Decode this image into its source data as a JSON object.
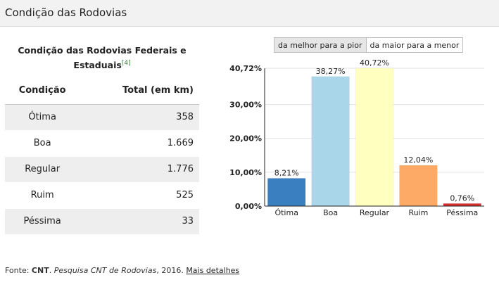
{
  "header": {
    "title": "Condição das Rodovias"
  },
  "table": {
    "caption": "Condição das Rodovias Federais e Estaduais",
    "ref": "[4]",
    "columns": [
      "Condição",
      "Total (em km)"
    ],
    "rows": [
      {
        "condicao": "Ótima",
        "total": "358"
      },
      {
        "condicao": "Boa",
        "total": "1.669"
      },
      {
        "condicao": "Regular",
        "total": "1.776"
      },
      {
        "condicao": "Ruim",
        "total": "525"
      },
      {
        "condicao": "Péssima",
        "total": "33"
      }
    ]
  },
  "sort_buttons": {
    "best_to_worst": "da melhor para a pior",
    "largest_to_smallest": "da maior para a menor"
  },
  "chart_data": {
    "type": "bar",
    "categories": [
      "Ótima",
      "Boa",
      "Regular",
      "Ruim",
      "Péssima"
    ],
    "values": [
      8.21,
      38.27,
      40.72,
      12.04,
      0.76
    ],
    "value_labels": [
      "8,21%",
      "38,27%",
      "40,72%",
      "12,04%",
      "0,76%"
    ],
    "colors": [
      "#3a7fbf",
      "#a9d6e8",
      "#ffffc0",
      "#fcaa66",
      "#d7302f"
    ],
    "ylim": [
      0,
      40.72
    ],
    "yticks": [
      0,
      10,
      20,
      30,
      40.72
    ],
    "ytick_labels": [
      "0,00%",
      "10,00%",
      "20,00%",
      "30,00%",
      "40,72%"
    ],
    "grid": true
  },
  "footer": {
    "prefix": "Fonte: ",
    "source": "CNT",
    "sep": ". ",
    "publication": "Pesquisa CNT de Rodovias",
    "year": ", 2016. ",
    "link": "Mais detalhes"
  }
}
